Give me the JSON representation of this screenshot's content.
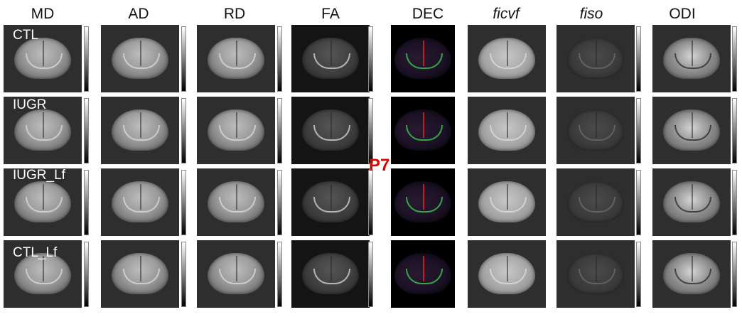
{
  "columns": [
    {
      "key": "md",
      "label": "MD",
      "italic": false
    },
    {
      "key": "ad",
      "label": "AD",
      "italic": false
    },
    {
      "key": "rd",
      "label": "RD",
      "italic": false
    },
    {
      "key": "fa",
      "label": "FA",
      "italic": false
    },
    {
      "key": "dec",
      "label": "DEC",
      "italic": false
    },
    {
      "key": "ficvf",
      "label": "ficvf",
      "italic": true
    },
    {
      "key": "fiso",
      "label": "fiso",
      "italic": true
    },
    {
      "key": "odi",
      "label": "ODI",
      "italic": false
    }
  ],
  "rows": [
    {
      "key": "ctl",
      "label": "CTL"
    },
    {
      "key": "iugr",
      "label": "IUGR"
    },
    {
      "key": "iugr_lf",
      "label": "IUGR_Lf"
    },
    {
      "key": "ctl_lf",
      "label": "CTL_Lf"
    }
  ],
  "timepoint": "P7",
  "panel_types": [
    "grayscale-mri",
    "grayscale-mri",
    "grayscale-mri",
    "fa-map",
    "direction-encoded-color",
    "icvf-map",
    "iso-map",
    "odi-map"
  ]
}
